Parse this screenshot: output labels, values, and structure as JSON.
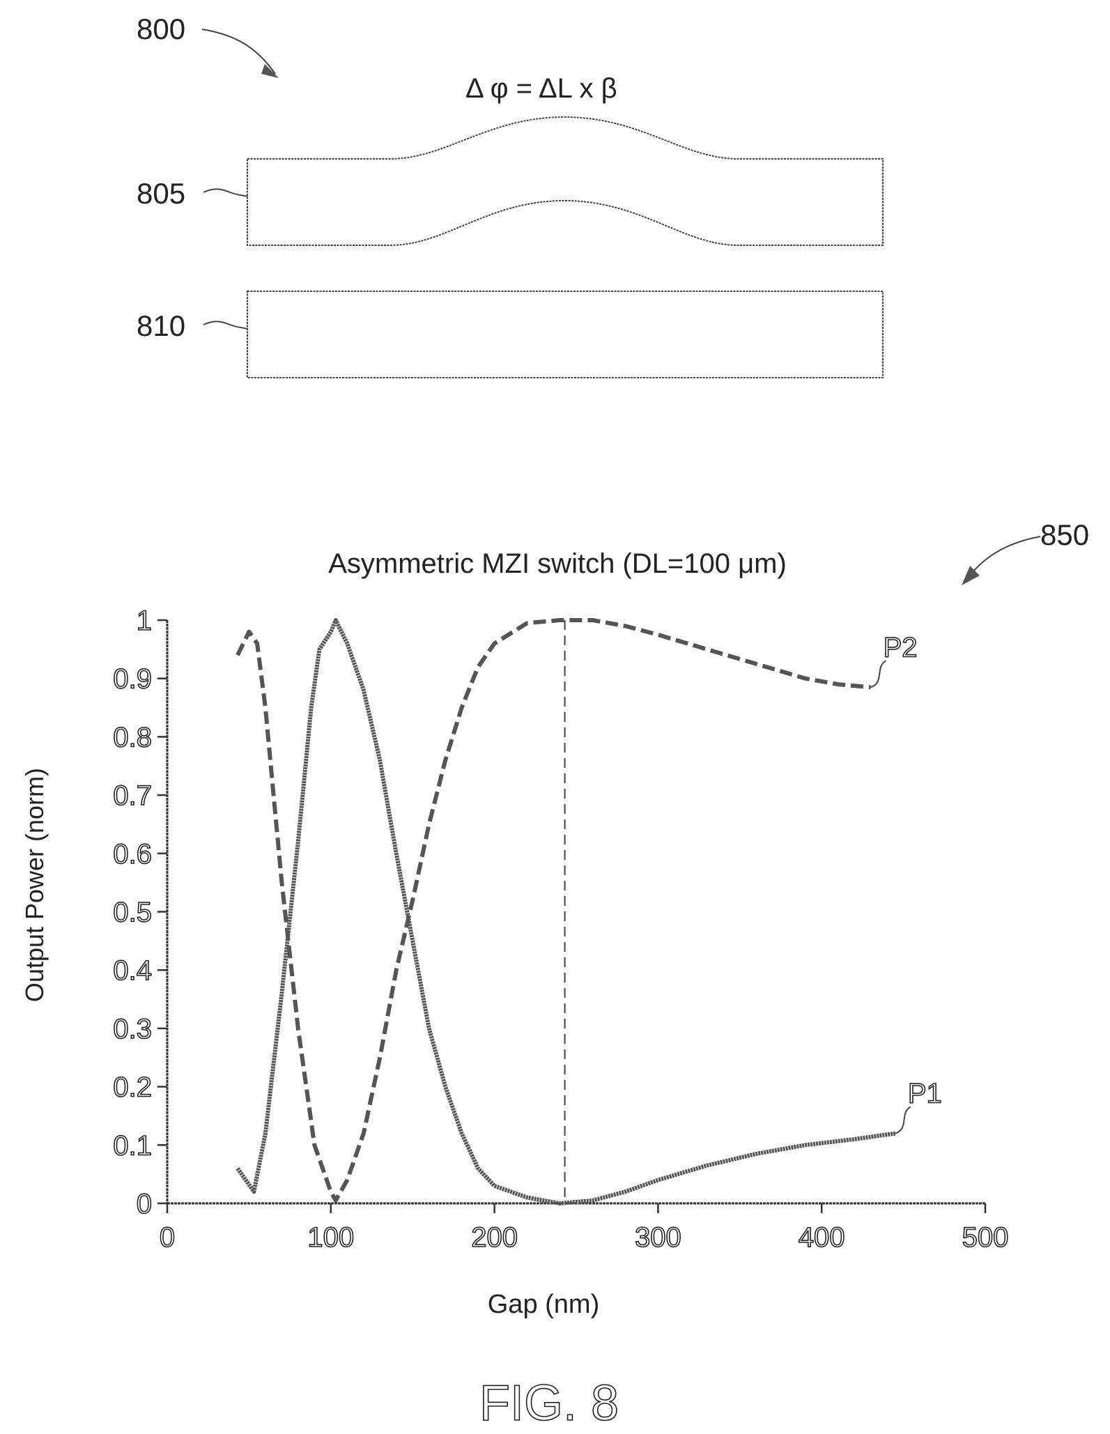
{
  "figure": {
    "ref_800": "800",
    "ref_805": "805",
    "ref_810": "810",
    "ref_850": "850",
    "equation": "Δ φ = ΔL x β",
    "caption": "FIG. 8"
  },
  "chart_data": {
    "type": "line",
    "title": "Asymmetric MZI switch (DL=100  μm)",
    "xlabel": "Gap (nm)",
    "ylabel": "Output Power (norm)",
    "xlim": [
      0,
      500
    ],
    "ylim": [
      0,
      1
    ],
    "x_ticks": [
      "0",
      "100",
      "200",
      "300",
      "400",
      "500"
    ],
    "y_ticks": [
      "0",
      "0.1",
      "0.2",
      "0.3",
      "0.4",
      "0.5",
      "0.6",
      "0.7",
      "0.8",
      "0.9",
      "1"
    ],
    "grid": false,
    "series": [
      {
        "name": "P1",
        "style": "solid",
        "points": [
          [
            43,
            0.06
          ],
          [
            53,
            0.02
          ],
          [
            60,
            0.12
          ],
          [
            70,
            0.36
          ],
          [
            80,
            0.62
          ],
          [
            88,
            0.85
          ],
          [
            93,
            0.95
          ],
          [
            100,
            0.98
          ],
          [
            103,
            1.0
          ],
          [
            110,
            0.96
          ],
          [
            120,
            0.88
          ],
          [
            130,
            0.76
          ],
          [
            140,
            0.6
          ],
          [
            150,
            0.45
          ],
          [
            160,
            0.3
          ],
          [
            170,
            0.2
          ],
          [
            180,
            0.12
          ],
          [
            190,
            0.06
          ],
          [
            200,
            0.03
          ],
          [
            220,
            0.01
          ],
          [
            240,
            0.0
          ],
          [
            260,
            0.005
          ],
          [
            280,
            0.02
          ],
          [
            300,
            0.04
          ],
          [
            330,
            0.065
          ],
          [
            360,
            0.085
          ],
          [
            390,
            0.1
          ],
          [
            420,
            0.11
          ],
          [
            445,
            0.12
          ]
        ]
      },
      {
        "name": "P2",
        "style": "dashed",
        "points": [
          [
            43,
            0.94
          ],
          [
            50,
            0.98
          ],
          [
            55,
            0.96
          ],
          [
            60,
            0.85
          ],
          [
            65,
            0.7
          ],
          [
            70,
            0.55
          ],
          [
            80,
            0.3
          ],
          [
            90,
            0.1
          ],
          [
            100,
            0.02
          ],
          [
            103,
            0.005
          ],
          [
            110,
            0.04
          ],
          [
            120,
            0.12
          ],
          [
            130,
            0.25
          ],
          [
            140,
            0.4
          ],
          [
            150,
            0.52
          ],
          [
            160,
            0.65
          ],
          [
            170,
            0.76
          ],
          [
            180,
            0.85
          ],
          [
            190,
            0.92
          ],
          [
            200,
            0.96
          ],
          [
            220,
            0.995
          ],
          [
            240,
            1.0
          ],
          [
            260,
            1.0
          ],
          [
            280,
            0.99
          ],
          [
            300,
            0.975
          ],
          [
            330,
            0.95
          ],
          [
            360,
            0.925
          ],
          [
            390,
            0.9
          ],
          [
            410,
            0.89
          ],
          [
            430,
            0.885
          ]
        ]
      }
    ],
    "annotations": [
      "P1",
      "P2"
    ],
    "marker_x": 243
  }
}
